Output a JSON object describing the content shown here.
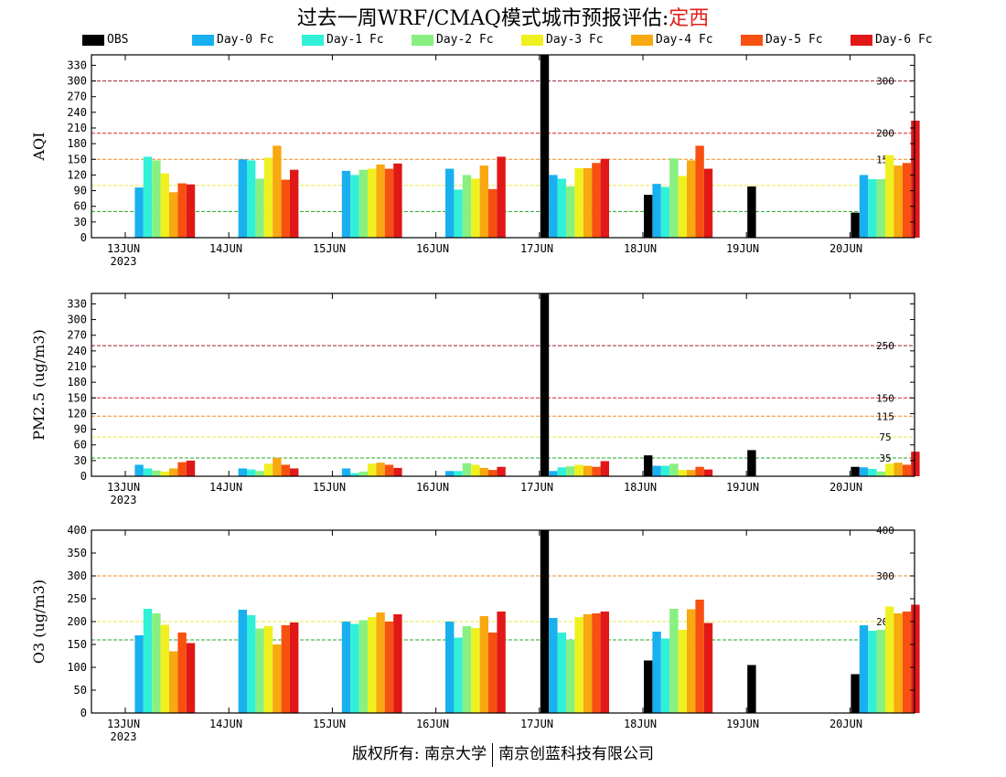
{
  "title": {
    "main": "过去一周WRF/CMAQ模式城市预报评估:",
    "city": "定西"
  },
  "legend": [
    {
      "label": "OBS",
      "color": "#000000"
    },
    {
      "label": "Day-0 Fc",
      "color": "#1ab0f0"
    },
    {
      "label": "Day-1 Fc",
      "color": "#30f0d8"
    },
    {
      "label": "Day-2 Fc",
      "color": "#88f080"
    },
    {
      "label": "Day-3 Fc",
      "color": "#f0f020"
    },
    {
      "label": "Day-4 Fc",
      "color": "#f8a810"
    },
    {
      "label": "Day-5 Fc",
      "color": "#f85010"
    },
    {
      "label": "Day-6 Fc",
      "color": "#e01818"
    }
  ],
  "footer": {
    "left": "版权所有: 南京大学",
    "right": "南京创蓝科技有限公司"
  },
  "chart_data": [
    {
      "type": "bar",
      "ylabel": "AQI",
      "ylim": [
        0,
        350
      ],
      "yticks": [
        0,
        30,
        60,
        90,
        120,
        150,
        180,
        210,
        240,
        270,
        300,
        330
      ],
      "categories": [
        "13JUN",
        "14JUN",
        "15JUN",
        "16JUN",
        "17JUN",
        "18JUN",
        "19JUN",
        "20JUN"
      ],
      "year_label": "2023",
      "series": [
        {
          "name": "OBS",
          "values": [
            null,
            null,
            null,
            null,
            350,
            82,
            98,
            48
          ]
        },
        {
          "name": "Day-0 Fc",
          "values": [
            96,
            150,
            128,
            132,
            120,
            103,
            null,
            120
          ]
        },
        {
          "name": "Day-1 Fc",
          "values": [
            155,
            148,
            120,
            92,
            113,
            97,
            null,
            112
          ]
        },
        {
          "name": "Day-2 Fc",
          "values": [
            148,
            113,
            130,
            120,
            98,
            152,
            null,
            112
          ]
        },
        {
          "name": "Day-3 Fc",
          "values": [
            123,
            153,
            132,
            113,
            133,
            118,
            null,
            158
          ]
        },
        {
          "name": "Day-4 Fc",
          "values": [
            87,
            176,
            140,
            138,
            133,
            148,
            null,
            138
          ]
        },
        {
          "name": "Day-5 Fc",
          "values": [
            104,
            111,
            132,
            93,
            143,
            176,
            null,
            143
          ]
        },
        {
          "name": "Day-6 Fc",
          "values": [
            102,
            130,
            142,
            155,
            151,
            132,
            null,
            224
          ]
        }
      ],
      "reference_lines": [
        {
          "value": 50,
          "label": "50",
          "color": "#22aa22"
        },
        {
          "value": 100,
          "label": "100",
          "color": "#e8e840"
        },
        {
          "value": 150,
          "label": "150",
          "color": "#f08a20"
        },
        {
          "value": 200,
          "label": "200",
          "color": "#dd2020"
        },
        {
          "value": 300,
          "label": "300",
          "color": "#992233"
        }
      ]
    },
    {
      "type": "bar",
      "ylabel": "PM2.5 (ug/m3)",
      "ylim": [
        0,
        350
      ],
      "yticks": [
        0,
        30,
        60,
        90,
        120,
        150,
        180,
        210,
        240,
        270,
        300,
        330
      ],
      "categories": [
        "13JUN",
        "14JUN",
        "15JUN",
        "16JUN",
        "17JUN",
        "18JUN",
        "19JUN",
        "20JUN"
      ],
      "year_label": "2023",
      "series": [
        {
          "name": "OBS",
          "values": [
            null,
            null,
            null,
            null,
            350,
            40,
            50,
            18
          ]
        },
        {
          "name": "Day-0 Fc",
          "values": [
            22,
            15,
            15,
            10,
            10,
            20,
            null,
            17
          ]
        },
        {
          "name": "Day-1 Fc",
          "values": [
            15,
            13,
            6,
            10,
            17,
            20,
            null,
            14
          ]
        },
        {
          "name": "Day-2 Fc",
          "values": [
            11,
            10,
            9,
            25,
            19,
            24,
            null,
            9
          ]
        },
        {
          "name": "Day-3 Fc",
          "values": [
            9,
            24,
            24,
            22,
            22,
            12,
            null,
            24
          ]
        },
        {
          "name": "Day-4 Fc",
          "values": [
            15,
            35,
            26,
            16,
            20,
            12,
            null,
            26
          ]
        },
        {
          "name": "Day-5 Fc",
          "values": [
            27,
            22,
            22,
            12,
            18,
            18,
            null,
            22
          ]
        },
        {
          "name": "Day-6 Fc",
          "values": [
            30,
            15,
            16,
            18,
            29,
            13,
            null,
            47
          ]
        }
      ],
      "reference_lines": [
        {
          "value": 35,
          "label": "35",
          "color": "#22aa22"
        },
        {
          "value": 75,
          "label": "75",
          "color": "#e8e840"
        },
        {
          "value": 115,
          "label": "115",
          "color": "#f08a20"
        },
        {
          "value": 150,
          "label": "150",
          "color": "#dd2020"
        },
        {
          "value": 250,
          "label": "250",
          "color": "#992233"
        }
      ]
    },
    {
      "type": "bar",
      "ylabel": "O3 (ug/m3)",
      "ylim": [
        0,
        400
      ],
      "yticks": [
        0,
        50,
        100,
        150,
        200,
        250,
        300,
        350,
        400
      ],
      "categories": [
        "13JUN",
        "14JUN",
        "15JUN",
        "16JUN",
        "17JUN",
        "18JUN",
        "19JUN",
        "20JUN"
      ],
      "year_label": "2023",
      "series": [
        {
          "name": "OBS",
          "values": [
            null,
            null,
            null,
            null,
            400,
            115,
            105,
            85
          ]
        },
        {
          "name": "Day-0 Fc",
          "values": [
            170,
            226,
            200,
            200,
            208,
            178,
            null,
            192
          ]
        },
        {
          "name": "Day-1 Fc",
          "values": [
            228,
            214,
            195,
            165,
            176,
            163,
            null,
            180
          ]
        },
        {
          "name": "Day-2 Fc",
          "values": [
            218,
            185,
            203,
            190,
            160,
            228,
            null,
            182
          ]
        },
        {
          "name": "Day-3 Fc",
          "values": [
            193,
            190,
            210,
            186,
            210,
            182,
            null,
            233
          ]
        },
        {
          "name": "Day-4 Fc",
          "values": [
            135,
            150,
            220,
            212,
            216,
            227,
            null,
            218
          ]
        },
        {
          "name": "Day-5 Fc",
          "values": [
            176,
            192,
            200,
            176,
            218,
            248,
            null,
            222
          ]
        },
        {
          "name": "Day-6 Fc",
          "values": [
            153,
            198,
            216,
            222,
            222,
            197,
            null,
            237
          ]
        }
      ],
      "reference_lines": [
        {
          "value": 160,
          "label": "160",
          "color": "#22aa22"
        },
        {
          "value": 200,
          "label": "200",
          "color": "#e8e840"
        },
        {
          "value": 300,
          "label": "300",
          "color": "#f08a20"
        },
        {
          "value": 400,
          "label": "400",
          "color": "#dd2020"
        }
      ]
    }
  ]
}
